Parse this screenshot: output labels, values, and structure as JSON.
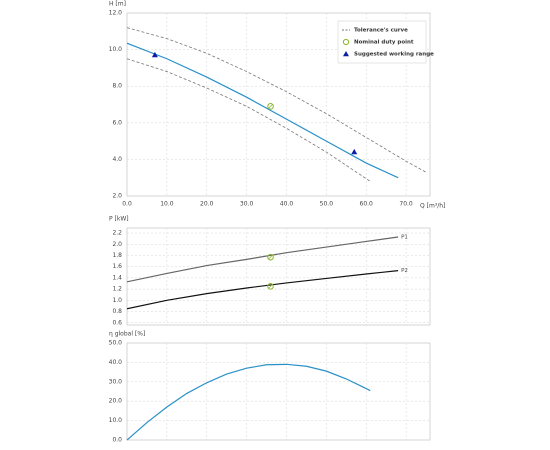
{
  "chart_data": [
    {
      "type": "line",
      "ylabel": "H [m]",
      "xlabel": "Q [m³/h]",
      "grid": true,
      "legend": "top-right",
      "xlim": [
        0,
        76
      ],
      "ylim": [
        2,
        12
      ],
      "xticks": [
        {
          "value": 0,
          "label": "0.0"
        },
        {
          "value": 10,
          "label": "10.0"
        },
        {
          "value": 20,
          "label": "20.0"
        },
        {
          "value": 30,
          "label": "30.0"
        },
        {
          "value": 40,
          "label": "40.0"
        },
        {
          "value": 50,
          "label": "50.0"
        },
        {
          "value": 60,
          "label": "60.0"
        },
        {
          "value": 70,
          "label": "70.0"
        }
      ],
      "yticks": [
        {
          "value": 2,
          "label": "2.0"
        },
        {
          "value": 4,
          "label": "4.0"
        },
        {
          "value": 6,
          "label": "6.0"
        },
        {
          "value": 8,
          "label": "8.0"
        },
        {
          "value": 10,
          "label": "10.0"
        },
        {
          "value": 12,
          "label": "12.0"
        }
      ],
      "series": [
        {
          "name": "Tolerance's curve",
          "color": "#777777",
          "line": "dashed",
          "x": [
            0,
            10,
            20,
            30,
            40,
            50,
            60,
            70,
            75
          ],
          "values": [
            11.2,
            10.6,
            9.8,
            8.8,
            7.7,
            6.5,
            5.2,
            3.9,
            3.3
          ]
        },
        {
          "color": "#777777",
          "line": "dashed",
          "x": [
            0,
            10,
            20,
            30,
            40,
            50,
            61
          ],
          "values": [
            9.5,
            8.8,
            7.9,
            6.9,
            5.7,
            4.4,
            2.8
          ]
        },
        {
          "color": "#2a90c8",
          "line": "solid",
          "x": [
            0,
            10,
            20,
            30,
            40,
            50,
            60,
            68
          ],
          "values": [
            10.35,
            9.5,
            8.5,
            7.4,
            6.2,
            5.0,
            3.8,
            3.0
          ]
        },
        {
          "name": "Nominal duty point",
          "color": "#8ab52a",
          "marker": "circle",
          "x": [
            36
          ],
          "values": [
            6.9
          ]
        },
        {
          "name": "Suggested working range",
          "color": "#0d1fa3",
          "marker": "triangle",
          "x": [
            7,
            57
          ],
          "values": [
            9.7,
            4.4
          ]
        }
      ]
    },
    {
      "type": "line",
      "ylabel": "P [kW]",
      "grid": true,
      "end_labels": true,
      "xlim": [
        0,
        76
      ],
      "ylim": [
        0.56,
        2.29
      ],
      "xticks": [
        0,
        10,
        20,
        30,
        40,
        50,
        60,
        70
      ],
      "yticks": [
        0.6,
        0.8,
        {
          "value": 1.0,
          "label": "1.0"
        },
        1.2,
        1.4,
        1.6,
        1.8,
        {
          "value": 2.0,
          "label": "2.0"
        },
        2.2
      ],
      "series": [
        {
          "name": "P1",
          "color": "#666666",
          "line": "solid",
          "x": [
            0,
            10,
            20,
            30,
            40,
            50,
            60,
            68
          ],
          "values": [
            1.33,
            1.48,
            1.62,
            1.73,
            1.85,
            1.95,
            2.05,
            2.13
          ]
        },
        {
          "name": "P2",
          "color": "#111111",
          "line": "solid",
          "x": [
            0,
            10,
            20,
            30,
            40,
            50,
            60,
            68
          ],
          "values": [
            0.85,
            1.0,
            1.12,
            1.22,
            1.31,
            1.39,
            1.47,
            1.53
          ]
        },
        {
          "color": "#8ab52a",
          "marker": "circle",
          "x": [
            36,
            36
          ],
          "values": [
            1.77,
            1.25
          ]
        }
      ]
    },
    {
      "type": "line",
      "ylabel": "η global [%]",
      "grid": true,
      "xlim": [
        0,
        76
      ],
      "ylim": [
        0,
        50
      ],
      "xticks": [
        0,
        10,
        20,
        30,
        40,
        50,
        60,
        70
      ],
      "yticks": [
        {
          "value": 0,
          "label": "0.0"
        },
        {
          "value": 10,
          "label": "10.0"
        },
        {
          "value": 20,
          "label": "20.0"
        },
        {
          "value": 30,
          "label": "30.0"
        },
        {
          "value": 40,
          "label": "40.0"
        },
        {
          "value": 50,
          "label": "50.0"
        }
      ],
      "series": [
        {
          "color": "#2a90c8",
          "line": "solid",
          "x": [
            0,
            5,
            10,
            15,
            20,
            25,
            30,
            35,
            40,
            45,
            50,
            55,
            61
          ],
          "values": [
            0,
            9,
            17,
            24,
            29.5,
            34,
            37,
            38.8,
            39,
            38,
            35.5,
            31.5,
            25.5
          ]
        }
      ]
    }
  ]
}
